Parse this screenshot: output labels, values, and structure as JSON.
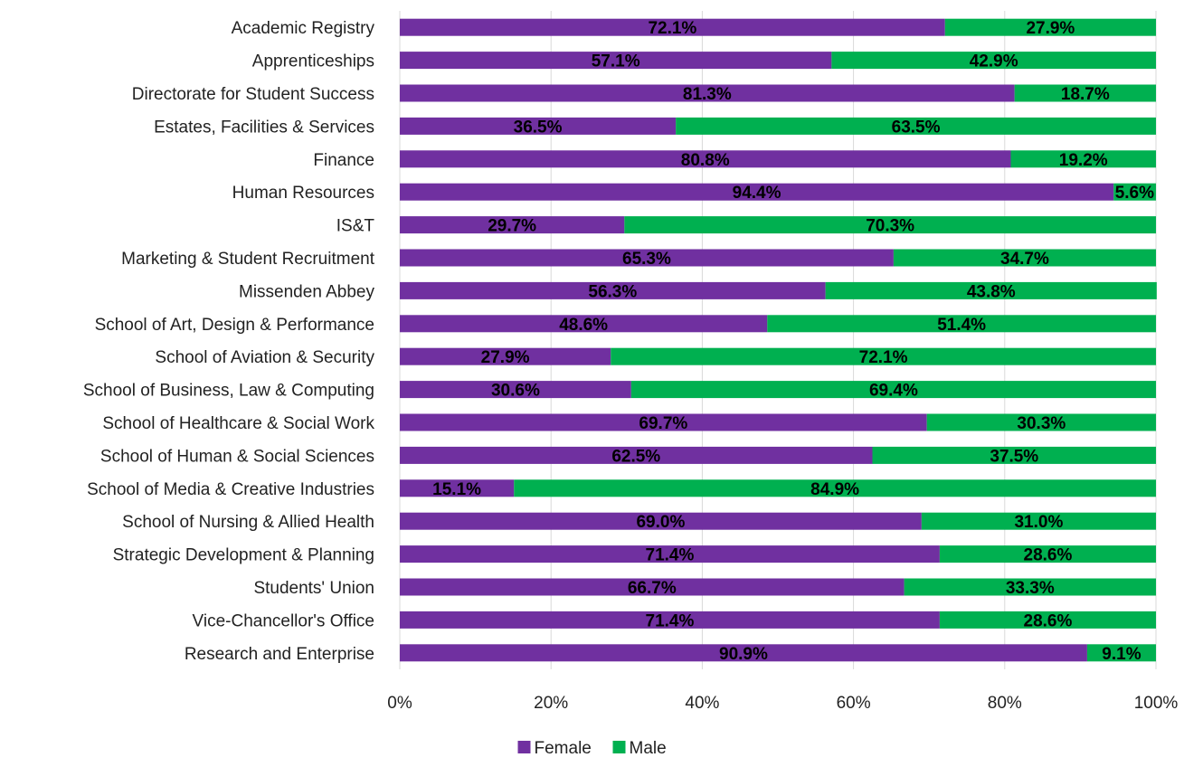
{
  "chart_data": {
    "type": "bar",
    "orientation": "horizontal",
    "stacked": "percent",
    "categories": [
      "Academic Registry",
      "Apprenticeships",
      "Directorate for Student Success",
      "Estates, Facilities & Services",
      "Finance",
      "Human Resources",
      "IS&T",
      "Marketing & Student Recruitment",
      "Missenden Abbey",
      "School of Art, Design & Performance",
      "School of Aviation & Security",
      "School of Business, Law & Computing",
      "School of Healthcare & Social Work",
      "School of Human & Social Sciences",
      "School of Media & Creative Industries",
      "School of Nursing & Allied Health",
      "Strategic Development & Planning",
      "Students' Union",
      "Vice-Chancellor's Office",
      "Research and Enterprise"
    ],
    "series": [
      {
        "name": "Female",
        "color": "#7030a0",
        "values": [
          72.1,
          57.1,
          81.3,
          36.5,
          80.8,
          94.4,
          29.7,
          65.3,
          56.3,
          48.6,
          27.9,
          30.6,
          69.7,
          62.5,
          15.1,
          69.0,
          71.4,
          66.7,
          71.4,
          90.9
        ],
        "labels": [
          "72.1%",
          "57.1%",
          "81.3%",
          "36.5%",
          "80.8%",
          "94.4%",
          "29.7%",
          "65.3%",
          "56.3%",
          "48.6%",
          "27.9%",
          "30.6%",
          "69.7%",
          "62.5%",
          "15.1%",
          "69.0%",
          "71.4%",
          "66.7%",
          "71.4%",
          "90.9%"
        ]
      },
      {
        "name": "Male",
        "color": "#00b050",
        "values": [
          27.9,
          42.9,
          18.7,
          63.5,
          19.2,
          5.6,
          70.3,
          34.7,
          43.8,
          51.4,
          72.1,
          69.4,
          30.3,
          37.5,
          84.9,
          31.0,
          28.6,
          33.3,
          28.6,
          9.1
        ],
        "labels": [
          "27.9%",
          "42.9%",
          "18.7%",
          "63.5%",
          "19.2%",
          "5.6%",
          "70.3%",
          "34.7%",
          "43.8%",
          "51.4%",
          "72.1%",
          "69.4%",
          "30.3%",
          "37.5%",
          "84.9%",
          "31.0%",
          "28.6%",
          "33.3%",
          "28.6%",
          "9.1%"
        ]
      }
    ],
    "xlim": [
      0,
      100
    ],
    "x_ticks": [
      "0%",
      "20%",
      "40%",
      "60%",
      "80%",
      "100%"
    ],
    "grid": true,
    "legend": "bottom",
    "title": "",
    "xlabel": "",
    "ylabel": ""
  }
}
